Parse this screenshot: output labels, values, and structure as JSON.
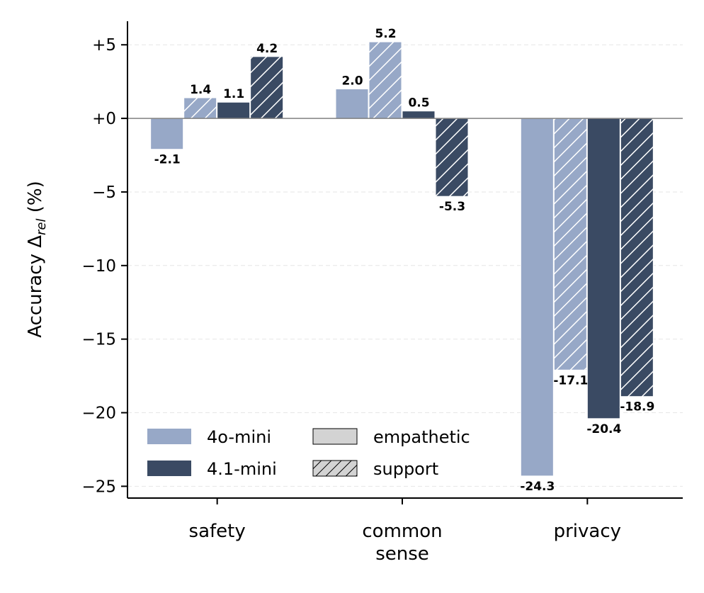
{
  "chart_data": {
    "type": "bar",
    "categories": [
      "safety",
      "common\nsense",
      "privacy"
    ],
    "series": [
      {
        "name": "4o-mini empathetic",
        "model": "4o-mini",
        "variant": "empathetic",
        "values": [
          -2.1,
          2.0,
          -24.3
        ]
      },
      {
        "name": "4o-mini support",
        "model": "4o-mini",
        "variant": "support",
        "values": [
          1.4,
          5.2,
          -17.1
        ]
      },
      {
        "name": "4.1-mini empathetic",
        "model": "4.1-mini",
        "variant": "empathetic",
        "values": [
          1.1,
          0.5,
          -20.4
        ]
      },
      {
        "name": "4.1-mini support",
        "model": "4.1-mini",
        "variant": "support",
        "values": [
          4.2,
          -5.3,
          -18.9
        ]
      }
    ],
    "value_labels": [
      [
        "-2.1",
        "2.0",
        "-24.3"
      ],
      [
        "1.4",
        "5.2",
        "-17.1"
      ],
      [
        "1.1",
        "0.5",
        "-20.4"
      ],
      [
        "4.2",
        "-5.3",
        "-18.9"
      ]
    ],
    "ylabel_prefix": "Accuracy Δ",
    "ylabel_sub": "rel",
    "ylabel_suffix": " (%)",
    "xlabel": "",
    "ylim": [
      -25.8,
      6.6
    ],
    "yticks": [
      5,
      0,
      -5,
      -10,
      -15,
      -20,
      -25
    ],
    "ytick_labels": [
      "+5",
      "+0",
      "−5",
      "−10",
      "−15",
      "−20",
      "−25"
    ],
    "grid": "horizontal dashed",
    "legend": {
      "placement": "lower-left",
      "models": [
        "4o-mini",
        "4.1-mini"
      ],
      "variants": [
        "empathetic",
        "support"
      ]
    },
    "colors": {
      "4o-mini": "#97a8c7",
      "4.1-mini": "#3a4a63",
      "legend_patch": "#d3d3d3",
      "zero_line": "#808080",
      "grid": "#e6e6e6"
    }
  }
}
